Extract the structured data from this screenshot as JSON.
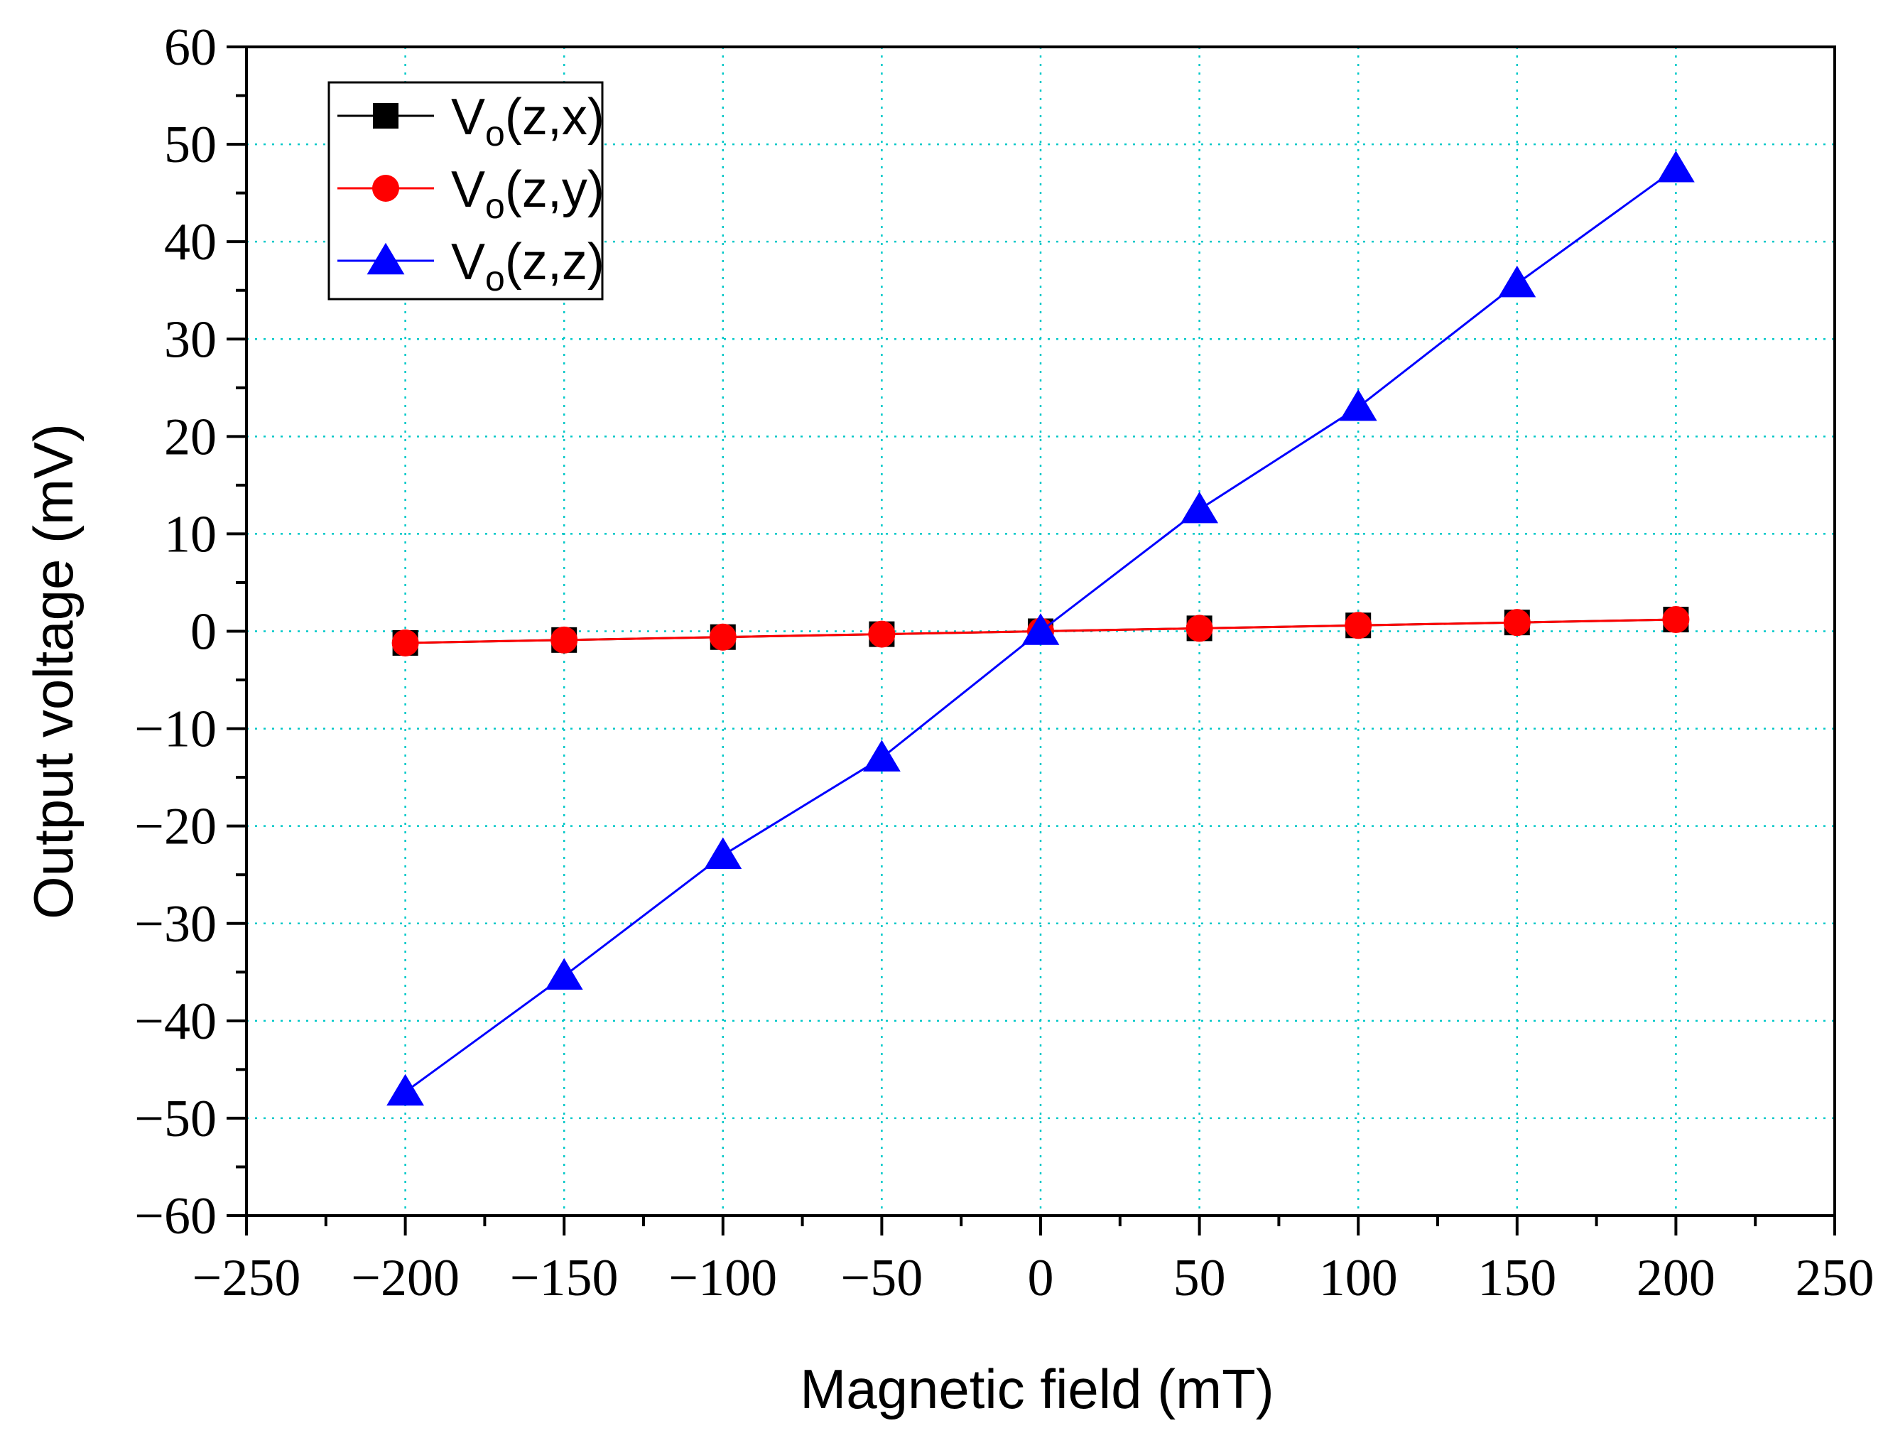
{
  "colors": {
    "background": "#ffffff",
    "axis": "#000000",
    "grid": "#00c8c8"
  },
  "chart_data": {
    "type": "line",
    "title": "",
    "xlabel": "Magnetic field (mT)",
    "ylabel": "Output voltage (mV)",
    "xlim": [
      -250,
      250
    ],
    "ylim": [
      -60,
      60
    ],
    "xticks": [
      -250,
      -200,
      -150,
      -100,
      -50,
      0,
      50,
      100,
      150,
      200,
      250
    ],
    "yticks": [
      60,
      50,
      40,
      30,
      20,
      10,
      0,
      -10,
      -20,
      -30,
      -40,
      -50,
      -60
    ],
    "xtick_labels": [
      "−250",
      "−200",
      "−150",
      "−100",
      "−50",
      "0",
      "50",
      "100",
      "150",
      "200",
      "250"
    ],
    "ytick_labels": [
      "60",
      "50",
      "40",
      "30",
      "20",
      "10",
      "0",
      "−10",
      "−20",
      "−30",
      "−40",
      "−50",
      "−60"
    ],
    "grid": true,
    "grid_style": "dotted",
    "legend_position": "top-left",
    "x": [
      -200,
      -150,
      -100,
      -50,
      0,
      50,
      100,
      150,
      200
    ],
    "series": [
      {
        "name_main": "V",
        "name_sub": "o",
        "name_rest": "(z,x)",
        "marker": "square",
        "color": "#000000",
        "values": [
          -1.2,
          -0.9,
          -0.6,
          -0.3,
          0.0,
          0.3,
          0.6,
          0.9,
          1.2
        ]
      },
      {
        "name_main": "V",
        "name_sub": "o",
        "name_rest": "(z,y)",
        "marker": "circle",
        "color": "#ff0000",
        "values": [
          -1.2,
          -0.9,
          -0.6,
          -0.3,
          0.0,
          0.3,
          0.6,
          0.9,
          1.2
        ]
      },
      {
        "name_main": "V",
        "name_sub": "o",
        "name_rest": "(z,z)",
        "marker": "triangle",
        "color": "#0000ff",
        "values": [
          -47.3,
          -35.4,
          -23.0,
          -13.0,
          0.0,
          12.5,
          23.0,
          35.7,
          47.5
        ]
      }
    ]
  }
}
